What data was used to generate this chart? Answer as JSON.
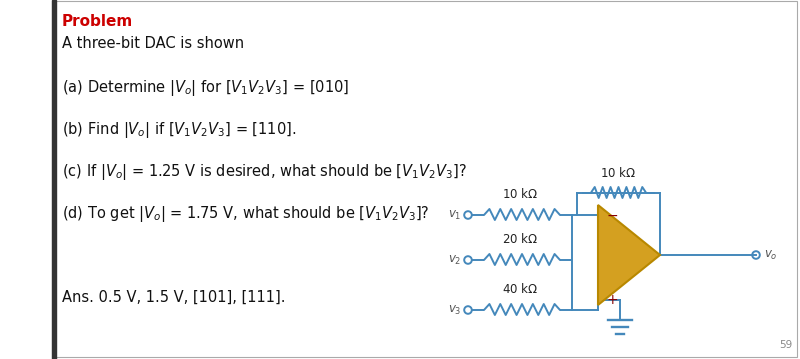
{
  "bg_color": "#ffffff",
  "title_text": "Problem",
  "title_color": "#cc0000",
  "ans_text": "Ans. 0.5 V, 1.5 V, [101], [111].",
  "wire_color": "#4488bb",
  "opamp_fill": "#d4a020",
  "opamp_edge": "#b88800",
  "text_color": "#222222",
  "label_color": "#444444",
  "page_num": "59"
}
